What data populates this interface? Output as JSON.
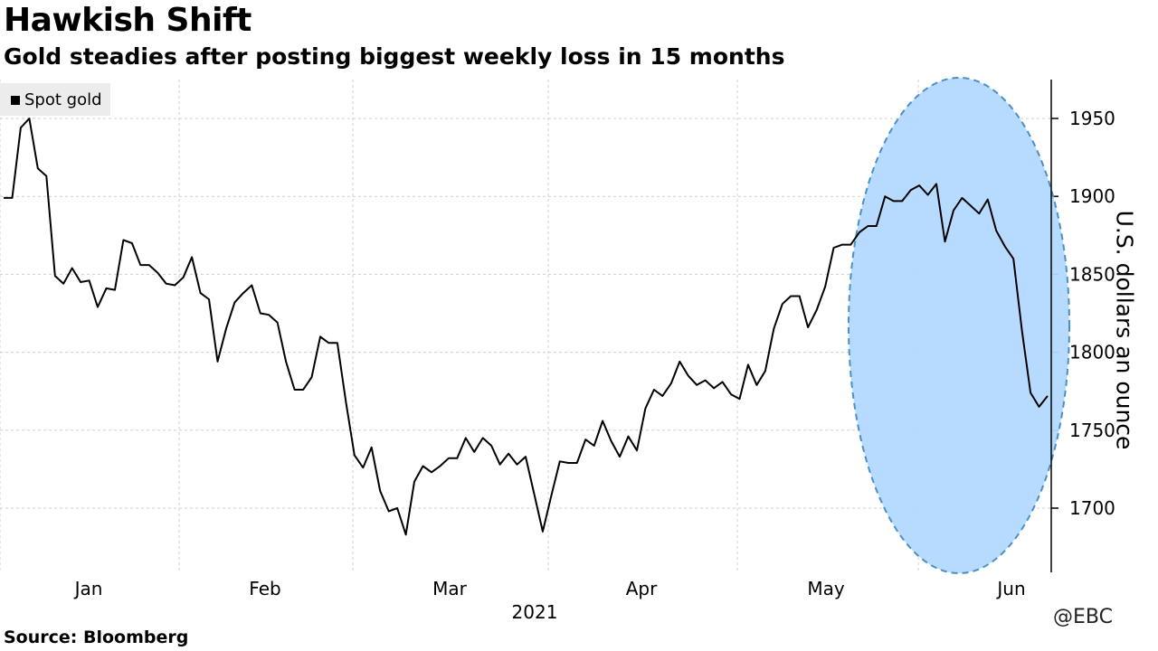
{
  "title": "Hawkish Shift",
  "subtitle": "Gold steadies after posting biggest weekly loss in 15 months",
  "source": "Source: Bloomberg",
  "watermark": "@EBC",
  "chart_data": {
    "type": "line",
    "ylabel": "U.S. dollars an ounce",
    "xlabel": "2021",
    "ylim": [
      1660,
      1975
    ],
    "y_ticks": [
      1700,
      1750,
      1800,
      1850,
      1900,
      1950
    ],
    "x_ticks": [
      "Jan",
      "Feb",
      "Mar",
      "Apr",
      "May",
      "Jun"
    ],
    "x_tick_index": [
      4,
      29,
      55,
      82,
      108,
      134
    ],
    "grid": true,
    "legend": {
      "position": "top-left",
      "entries": [
        "Spot gold"
      ]
    },
    "highlight": {
      "type": "ellipse",
      "color": "#b3d9ff",
      "covers_index_range": [
        120,
        150
      ]
    },
    "series": [
      {
        "name": "Spot gold",
        "color": "#000000",
        "values": [
          1899,
          1899,
          1944,
          1950,
          1918,
          1913,
          1849,
          1844,
          1854,
          1845,
          1846,
          1829,
          1841,
          1840,
          1872,
          1870,
          1856,
          1856,
          1851,
          1844,
          1843,
          1848,
          1861,
          1838,
          1834,
          1794,
          1815,
          1832,
          1838,
          1843,
          1825,
          1824,
          1819,
          1794,
          1776,
          1776,
          1784,
          1810,
          1806,
          1806,
          1768,
          1734,
          1726,
          1739,
          1711,
          1698,
          1700,
          1683,
          1717,
          1727,
          1723,
          1727,
          1732,
          1732,
          1745,
          1736,
          1745,
          1740,
          1728,
          1735,
          1728,
          1733,
          1709,
          1685,
          1708,
          1730,
          1729,
          1729,
          1744,
          1740,
          1756,
          1743,
          1733,
          1746,
          1737,
          1764,
          1776,
          1772,
          1780,
          1794,
          1785,
          1779,
          1782,
          1777,
          1781,
          1773,
          1770,
          1792,
          1779,
          1788,
          1815,
          1831,
          1836,
          1836,
          1816,
          1827,
          1842,
          1867,
          1869,
          1869,
          1877,
          1881,
          1881,
          1900,
          1897,
          1897,
          1904,
          1907,
          1901,
          1908,
          1871,
          1891,
          1899,
          1894,
          1889,
          1898,
          1878,
          1868,
          1860,
          1814,
          1774,
          1765,
          1772
        ]
      }
    ]
  }
}
